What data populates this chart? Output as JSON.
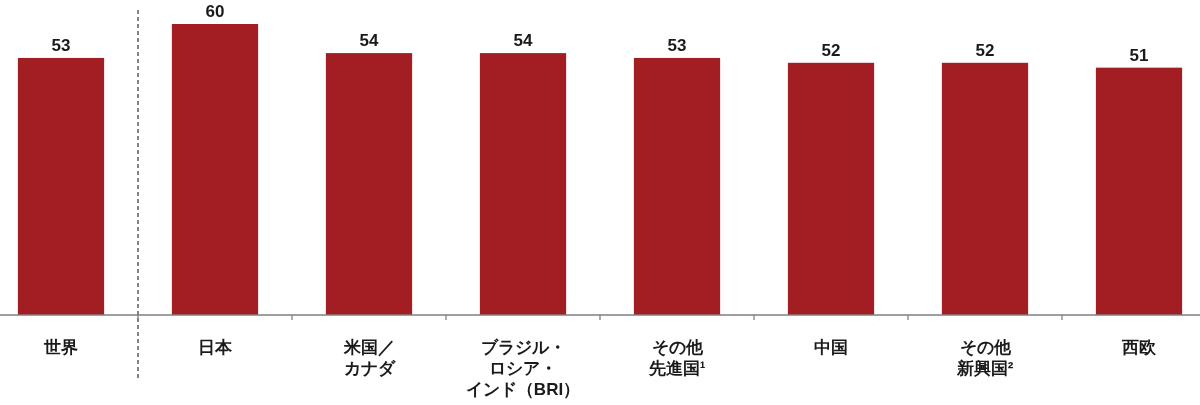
{
  "chart_data": {
    "type": "bar",
    "categories": [
      "世界",
      "日本",
      "米国／カナダ",
      "ブラジル・ロシア・インド（BRI）",
      "その他先進国¹",
      "中国",
      "その他新興国²",
      "西欧"
    ],
    "values": [
      53,
      60,
      54,
      54,
      53,
      52,
      52,
      51
    ],
    "color": "#a21e22",
    "ylim": [
      0,
      60
    ],
    "tick_labels": "x",
    "data_labels": true
  }
}
